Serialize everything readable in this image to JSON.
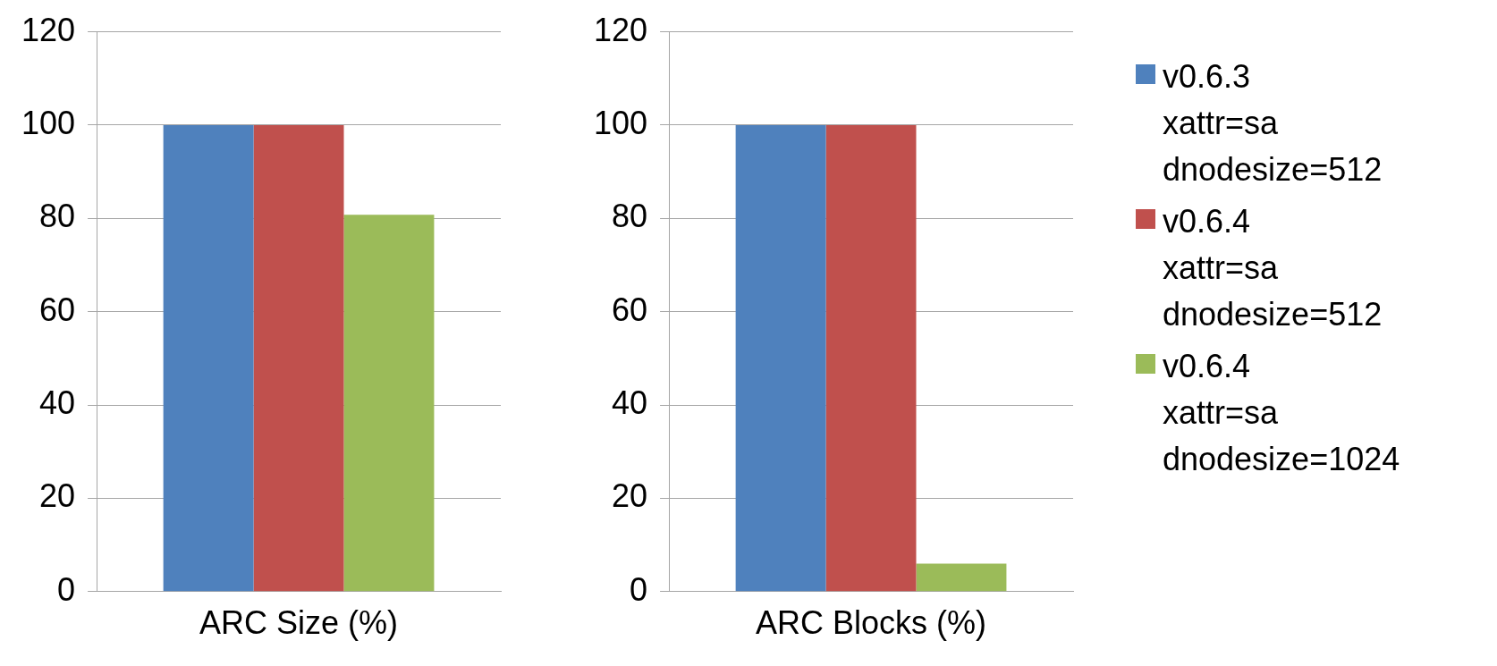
{
  "chart_data": [
    {
      "type": "bar",
      "categories": [
        "ARC Size (%)"
      ],
      "series": [
        {
          "color": "#4f81bd",
          "values": [
            100
          ]
        },
        {
          "color": "#c0504d",
          "values": [
            100
          ]
        },
        {
          "color": "#9bbb59",
          "values": [
            80.8
          ]
        }
      ],
      "ylim": [
        0,
        120
      ],
      "yticks": [
        0,
        20,
        40,
        60,
        80,
        100,
        120
      ],
      "grid": "y",
      "legend": false
    },
    {
      "type": "bar",
      "categories": [
        "ARC Blocks (%)"
      ],
      "series": [
        {
          "name": "v0.6.3 xattr=sa dnodesize=512",
          "color": "#4f81bd",
          "values": [
            100
          ]
        },
        {
          "name": "v0.6.4 xattr=sa dnodesize=512",
          "color": "#c0504d",
          "values": [
            100
          ]
        },
        {
          "name": "v0.6.4 xattr=sa dnodesize=1024",
          "color": "#9bbb59",
          "values": [
            6
          ]
        }
      ],
      "ylim": [
        0,
        120
      ],
      "yticks": [
        0,
        20,
        40,
        60,
        80,
        100,
        120
      ],
      "grid": "y",
      "legend": "right"
    }
  ]
}
